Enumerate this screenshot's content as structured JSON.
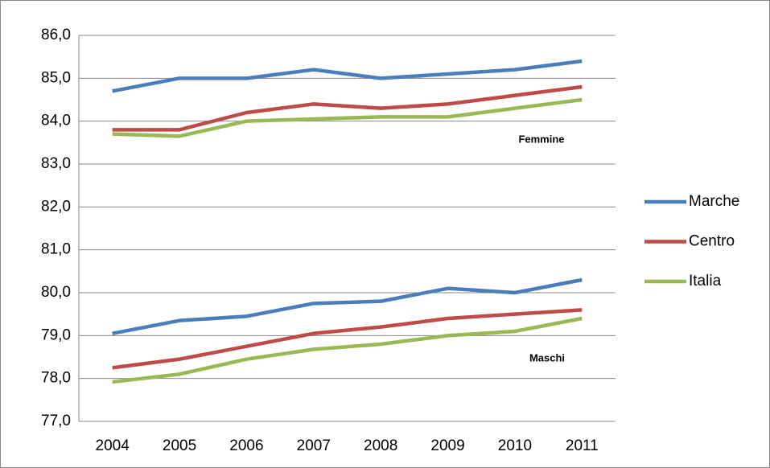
{
  "chart_data": {
    "type": "line",
    "categories": [
      "2004",
      "2005",
      "2006",
      "2007",
      "2008",
      "2009",
      "2010",
      "2011"
    ],
    "series": [
      {
        "name": "Marche",
        "color": "#4a7ebb"
      },
      {
        "name": "Centro",
        "color": "#be4b48"
      },
      {
        "name": "Italia",
        "color": "#98b954"
      }
    ],
    "groups": [
      {
        "label": "Femmine",
        "values": [
          [
            84.7,
            85.0,
            85.0,
            85.2,
            85.0,
            85.1,
            85.2,
            85.4
          ],
          [
            83.8,
            83.8,
            84.2,
            84.4,
            84.3,
            84.4,
            84.6,
            84.8
          ],
          [
            83.7,
            83.65,
            84.0,
            84.05,
            84.1,
            84.1,
            84.3,
            84.5
          ]
        ]
      },
      {
        "label": "Maschi",
        "values": [
          [
            79.05,
            79.35,
            79.45,
            79.75,
            79.8,
            80.1,
            80.0,
            80.3
          ],
          [
            78.25,
            78.45,
            78.75,
            79.05,
            79.2,
            79.4,
            79.5,
            79.6
          ],
          [
            77.92,
            78.1,
            78.45,
            78.68,
            78.8,
            79.0,
            79.1,
            79.4
          ]
        ]
      }
    ],
    "ylim": [
      77,
      86
    ],
    "yticks": [
      {
        "value": 77,
        "label": "77,0"
      },
      {
        "value": 78,
        "label": "78,0"
      },
      {
        "value": 79,
        "label": "79,0"
      },
      {
        "value": 80,
        "label": "80,0"
      },
      {
        "value": 81,
        "label": "81,0"
      },
      {
        "value": 82,
        "label": "82,0"
      },
      {
        "value": 83,
        "label": "83,0"
      },
      {
        "value": 84,
        "label": "84,0"
      },
      {
        "value": 85,
        "label": "85,0"
      },
      {
        "value": 86,
        "label": "86,0"
      }
    ],
    "grid": true,
    "legend": "right"
  }
}
